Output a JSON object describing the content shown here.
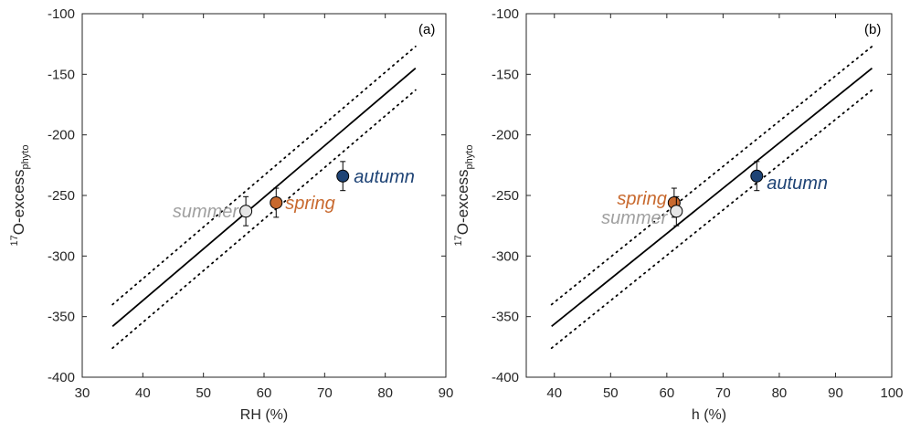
{
  "chart_data": [
    {
      "type": "scatter",
      "panel_label": "(a)",
      "xlabel": "RH (%)",
      "ylabel_main": "O-excess",
      "ylabel_sup": "17",
      "ylabel_sub": "phyto",
      "xlim": [
        30,
        90
      ],
      "ylim": [
        -400,
        -100
      ],
      "xticks": [
        30,
        40,
        50,
        60,
        70,
        80,
        90
      ],
      "yticks": [
        -100,
        -150,
        -200,
        -250,
        -300,
        -350,
        -400
      ],
      "grid": false,
      "regression_line": {
        "x": [
          35,
          85
        ],
        "y": [
          -358,
          -145
        ]
      },
      "confidence_upper": {
        "x": [
          35,
          85
        ],
        "y": [
          -340,
          -127
        ]
      },
      "confidence_lower": {
        "x": [
          35,
          85
        ],
        "y": [
          -376,
          -163
        ]
      },
      "points": [
        {
          "label": "summer",
          "x": 57,
          "y": -263,
          "err": 12,
          "color": "#e6e6e6",
          "label_color": "#a0a0a0"
        },
        {
          "label": "spring",
          "x": 62,
          "y": -256,
          "err": 12,
          "color": "#c8692e",
          "label_color": "#c8692e"
        },
        {
          "label": "autumn",
          "x": 73,
          "y": -234,
          "err": 12,
          "color": "#1e4375",
          "label_color": "#1e4375"
        }
      ]
    },
    {
      "type": "scatter",
      "panel_label": "(b)",
      "xlabel": "h (%)",
      "ylabel_main": "O-excess",
      "ylabel_sup": "17",
      "ylabel_sub": "phyto",
      "xlim": [
        35,
        100
      ],
      "ylim": [
        -400,
        -100
      ],
      "xticks": [
        40,
        50,
        60,
        70,
        80,
        90,
        100
      ],
      "yticks": [
        -100,
        -150,
        -200,
        -250,
        -300,
        -350,
        -400
      ],
      "grid": false,
      "regression_line": {
        "x": [
          39.5,
          96.5
        ],
        "y": [
          -358,
          -145
        ]
      },
      "confidence_upper": {
        "x": [
          39.5,
          96.5
        ],
        "y": [
          -340,
          -127
        ]
      },
      "confidence_lower": {
        "x": [
          39.5,
          96.5
        ],
        "y": [
          -376,
          -163
        ]
      },
      "points": [
        {
          "label": "spring",
          "x": 61.3,
          "y": -256,
          "err": 12,
          "color": "#c8692e",
          "label_color": "#c8692e"
        },
        {
          "label": "summer",
          "x": 61.7,
          "y": -263,
          "err": 12,
          "color": "#e6e6e6",
          "label_color": "#a0a0a0"
        },
        {
          "label": "autumn",
          "x": 76,
          "y": -234,
          "err": 12,
          "color": "#1e4375",
          "label_color": "#1e4375"
        }
      ]
    }
  ]
}
